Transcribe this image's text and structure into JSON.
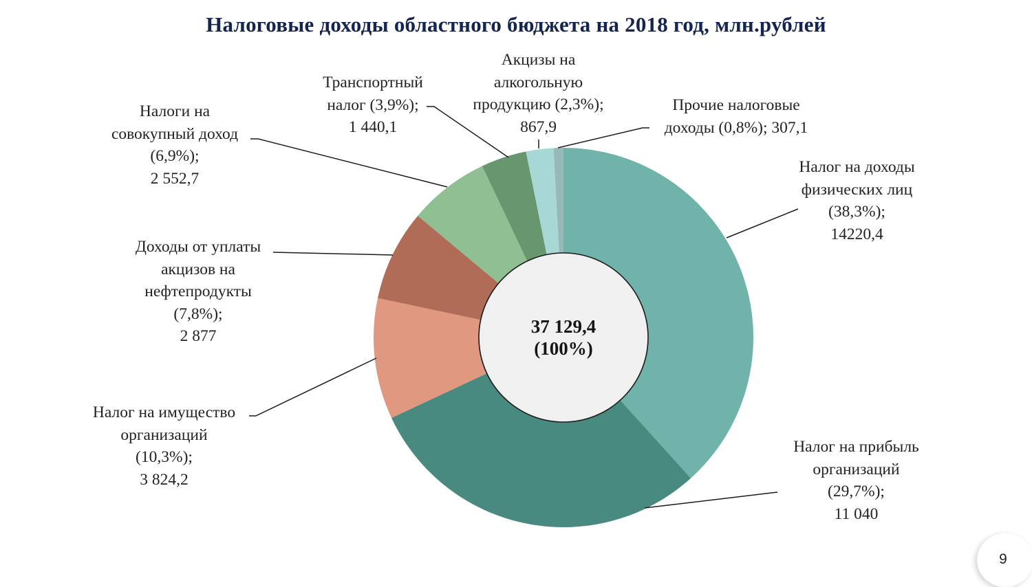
{
  "slide": {
    "title": "Налоговые доходы областного бюджета на 2018 год, млн.рублей",
    "page_number": "9"
  },
  "center": {
    "total": "37 129,4",
    "percent": "(100%)"
  },
  "labels": {
    "ndfl": {
      "line1": "Налог на доходы",
      "line2": "физических лиц",
      "line3": "(38,3%);",
      "line4": "14220,4"
    },
    "profit": {
      "line1": "Налог на прибыль",
      "line2": "организаций",
      "line3": "(29,7%);",
      "line4": "11 040"
    },
    "property": {
      "line1": "Налог на имущество",
      "line2": "организаций",
      "line3": "(10,3%);",
      "line4": "3 824,2"
    },
    "oil": {
      "line1": "Доходы от уплаты",
      "line2": "акцизов на",
      "line3": "нефтепродукты",
      "line4": "(7,8%);",
      "line5": "2 877"
    },
    "aggregate": {
      "line1": "Налоги на",
      "line2": "совокупный доход",
      "line3": "(6,9%);",
      "line4": "2 552,7"
    },
    "transport": {
      "line1": "Транспортный",
      "line2": "налог (3,9%);",
      "line3": "1 440,1"
    },
    "alcohol": {
      "line1": "Акцизы на",
      "line2": "алкогольную",
      "line3": "продукцию (2,3%);",
      "line4": "867,9"
    },
    "other": {
      "line1": "Прочие налоговые",
      "line2": "доходы (0,8%); 307,1"
    }
  },
  "colors": {
    "title": "#14254f",
    "center_fill": "#f0f0f0"
  },
  "chart_data": {
    "type": "pie",
    "variant": "donut",
    "title": "Налоговые доходы областного бюджета на 2018 год, млн.рублей",
    "unit": "млн. рублей",
    "total": 37129.4,
    "total_label": "37 129,4 (100%)",
    "start_angle": "12 o'clock, clockwise",
    "categories": [
      "Налог на доходы физических лиц",
      "Налог на прибыль организаций",
      "Налог на имущество организаций",
      "Доходы от уплаты акцизов на нефтепродукты",
      "Налоги на совокупный доход",
      "Транспортный налог",
      "Акцизы на алкогольную продукцию",
      "Прочие налоговые доходы"
    ],
    "values": [
      14220.4,
      11040,
      3824.2,
      2877,
      2552.7,
      1440.1,
      867.9,
      307.1
    ],
    "percents": [
      38.3,
      29.7,
      10.3,
      7.8,
      6.9,
      3.9,
      2.3,
      0.8
    ],
    "slice_colors": [
      "#6fb3aa",
      "#488a7f",
      "#e09980",
      "#b06c56",
      "#8fbf93",
      "#67966f",
      "#a7d8d6",
      "#96b8b6"
    ],
    "legend": "none (callout labels)"
  }
}
